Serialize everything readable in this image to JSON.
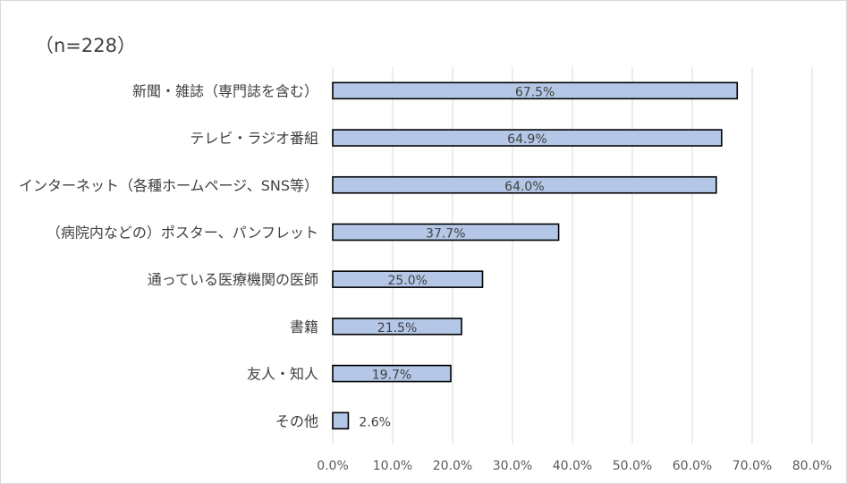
{
  "chart_data": {
    "type": "bar",
    "orientation": "horizontal",
    "note": "（n=228）",
    "categories": [
      "新聞・雑誌（専門誌を含む）",
      "テレビ・ラジオ番組",
      "インターネット（各種ホームページ、SNS等）",
      "（病院内などの）ポスター、パンフレット",
      "通っている医療機関の医師",
      "書籍",
      "友人・知人",
      "その他"
    ],
    "values": [
      67.5,
      64.9,
      64.0,
      37.7,
      25.0,
      21.5,
      19.7,
      2.6
    ],
    "value_labels": [
      "67.5%",
      "64.9%",
      "64.0%",
      "37.7%",
      "25.0%",
      "21.5%",
      "19.7%",
      "2.6%"
    ],
    "xlim": [
      0,
      80
    ],
    "xticks": [
      "0.0%",
      "10.0%",
      "20.0%",
      "30.0%",
      "40.0%",
      "50.0%",
      "60.0%",
      "70.0%",
      "80.0%"
    ],
    "grid": true,
    "legend": "none",
    "colors": {
      "bar_fill": "#b4c7e7",
      "bar_stroke": "#000000",
      "grid": "#d9d9d9"
    }
  }
}
